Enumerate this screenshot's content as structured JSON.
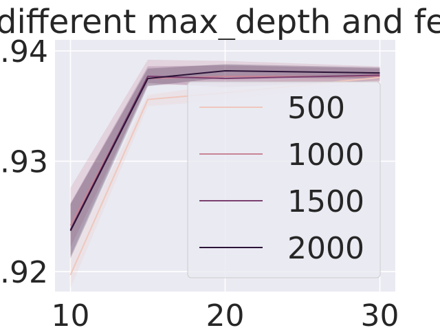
{
  "chart_data": {
    "type": "line",
    "title": "different max_depth and fe",
    "xlabel": "",
    "ylabel": "",
    "x": [
      10,
      15,
      20,
      30
    ],
    "x_ticks": [
      "10",
      "20",
      "30"
    ],
    "y_ticks": [
      ".92",
      ".93",
      ".94"
    ],
    "y_tick_values": [
      0.92,
      0.93,
      0.94
    ],
    "xlim": [
      9,
      31
    ],
    "ylim": [
      0.9182,
      0.941
    ],
    "grid": true,
    "legend_position": "lower-right",
    "series": [
      {
        "name": "500",
        "color": "#efc7bd",
        "values": [
          0.9197,
          0.9356,
          0.9362,
          0.9376
        ],
        "band_low": [
          0.9185,
          0.935,
          0.9355,
          0.9372
        ],
        "band_high": [
          0.9215,
          0.936,
          0.937,
          0.938
        ]
      },
      {
        "name": "1000",
        "color": "#c78596",
        "values": [
          0.9242,
          0.9375,
          0.9377,
          0.9377
        ],
        "band_low": [
          0.9222,
          0.9369,
          0.937,
          0.9372
        ],
        "band_high": [
          0.9276,
          0.9392,
          0.9391,
          0.9386
        ]
      },
      {
        "name": "1500",
        "color": "#7a3e6e",
        "values": [
          0.9238,
          0.9377,
          0.9375,
          0.9378
        ],
        "band_low": [
          0.9214,
          0.9371,
          0.9367,
          0.9373
        ],
        "band_high": [
          0.9262,
          0.9386,
          0.9387,
          0.9384
        ]
      },
      {
        "name": "2000",
        "color": "#2b1338",
        "values": [
          0.9237,
          0.9375,
          0.9382,
          0.938
        ],
        "band_low": [
          0.9212,
          0.9368,
          0.9376,
          0.9375
        ],
        "band_high": [
          0.9261,
          0.9384,
          0.9388,
          0.9385
        ]
      }
    ]
  }
}
